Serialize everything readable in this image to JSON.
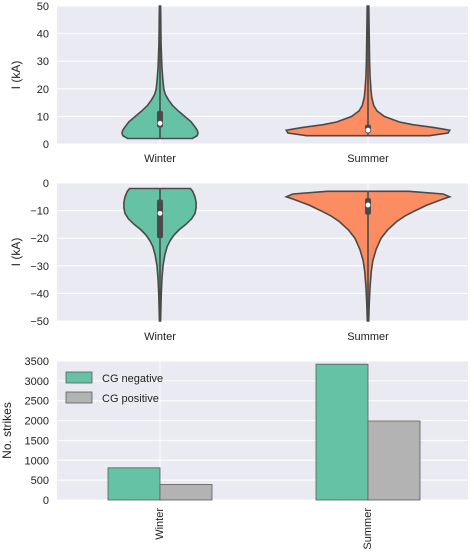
{
  "colors": {
    "winter": "#66c2a5",
    "summer": "#fc8d62",
    "cg_negative": "#66c2a5",
    "cg_positive": "#b3b3b3",
    "panel_bg": "#eaeaf2",
    "grid": "#ffffff",
    "violin_edge": "#4a4a4a"
  },
  "chart_data": [
    {
      "type": "violin",
      "ylabel": "I (kA)",
      "ylim": [
        0,
        50
      ],
      "yticks": [
        "0",
        "10",
        "20",
        "30",
        "40",
        "50"
      ],
      "ytick_values": [
        0,
        10,
        20,
        30,
        40,
        50
      ],
      "categories": [
        "Winter",
        "Summer"
      ],
      "grid": true,
      "series": [
        {
          "category": "Winter",
          "min": 2,
          "max": 50,
          "q1": 6,
          "median": 7.5,
          "q3": 12,
          "density": [
            [
              2,
              0.85
            ],
            [
              3,
              0.98
            ],
            [
              4,
              1.0
            ],
            [
              5,
              0.98
            ],
            [
              6,
              0.93
            ],
            [
              8,
              0.82
            ],
            [
              10,
              0.65
            ],
            [
              12,
              0.48
            ],
            [
              14,
              0.33
            ],
            [
              16,
              0.22
            ],
            [
              18,
              0.14
            ],
            [
              20,
              0.1
            ],
            [
              24,
              0.07
            ],
            [
              28,
              0.05
            ],
            [
              32,
              0.04
            ],
            [
              36,
              0.03
            ],
            [
              40,
              0.025
            ],
            [
              45,
              0.02
            ],
            [
              50,
              0.015
            ]
          ]
        },
        {
          "category": "Summer",
          "min": 3,
          "max": 50,
          "q1": 4,
          "median": 5,
          "q3": 7,
          "density": [
            [
              3,
              0.75
            ],
            [
              4,
              0.98
            ],
            [
              5,
              1.0
            ],
            [
              6,
              0.8
            ],
            [
              7,
              0.55
            ],
            [
              8,
              0.38
            ],
            [
              10,
              0.2
            ],
            [
              12,
              0.11
            ],
            [
              14,
              0.07
            ],
            [
              17,
              0.045
            ],
            [
              20,
              0.035
            ],
            [
              25,
              0.025
            ],
            [
              30,
              0.02
            ],
            [
              40,
              0.015
            ],
            [
              50,
              0.01
            ]
          ]
        }
      ]
    },
    {
      "type": "violin",
      "ylabel": "I (kA)",
      "ylim": [
        -50,
        0
      ],
      "yticks": [
        "0",
        "−10",
        "−20",
        "−30",
        "−40",
        "−50"
      ],
      "ytick_values": [
        0,
        -10,
        -20,
        -30,
        -40,
        -50
      ],
      "categories": [
        "Winter",
        "Summer"
      ],
      "grid": true,
      "series": [
        {
          "category": "Winter",
          "min": -50,
          "max": -2,
          "q1": -20,
          "median": -11,
          "q3": -6,
          "density": [
            [
              -2,
              0.8
            ],
            [
              -3,
              0.86
            ],
            [
              -5,
              0.92
            ],
            [
              -7,
              0.95
            ],
            [
              -9,
              0.95
            ],
            [
              -11,
              0.92
            ],
            [
              -13,
              0.83
            ],
            [
              -15,
              0.68
            ],
            [
              -17,
              0.5
            ],
            [
              -19,
              0.36
            ],
            [
              -21,
              0.26
            ],
            [
              -23,
              0.19
            ],
            [
              -26,
              0.13
            ],
            [
              -30,
              0.08
            ],
            [
              -35,
              0.05
            ],
            [
              -40,
              0.035
            ],
            [
              -45,
              0.025
            ],
            [
              -50,
              0.015
            ]
          ]
        },
        {
          "category": "Summer",
          "min": -50,
          "max": -3,
          "q1": -11.5,
          "median": -8,
          "q3": -5.5,
          "density": [
            [
              -3,
              0.5
            ],
            [
              -4,
              0.92
            ],
            [
              -5,
              1.0
            ],
            [
              -6,
              0.9
            ],
            [
              -8,
              0.72
            ],
            [
              -10,
              0.58
            ],
            [
              -12,
              0.45
            ],
            [
              -14,
              0.35
            ],
            [
              -17,
              0.24
            ],
            [
              -20,
              0.16
            ],
            [
              -24,
              0.1
            ],
            [
              -28,
              0.06
            ],
            [
              -32,
              0.04
            ],
            [
              -38,
              0.025
            ],
            [
              -44,
              0.015
            ],
            [
              -50,
              0.008
            ]
          ]
        }
      ]
    },
    {
      "type": "bar",
      "ylabel": "No. strikes",
      "ylim": [
        0,
        3500
      ],
      "yticks": [
        "0",
        "500",
        "1000",
        "1500",
        "2000",
        "2500",
        "3000",
        "3500"
      ],
      "ytick_values": [
        0,
        500,
        1000,
        1500,
        2000,
        2500,
        3000,
        3500
      ],
      "categories": [
        "Winter",
        "Summer"
      ],
      "grid": true,
      "legend_position": "top-left",
      "series": [
        {
          "name": "CG negative",
          "values": [
            810,
            3420
          ]
        },
        {
          "name": "CG positive",
          "values": [
            390,
            1990
          ]
        }
      ]
    }
  ]
}
